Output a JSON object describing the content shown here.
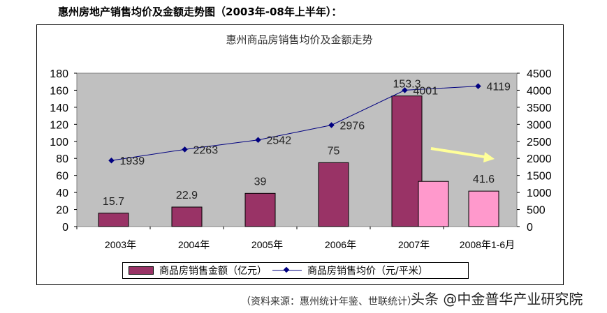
{
  "heading": "惠州房地产销售均价及金额走势图（2003年-08年上半年）：",
  "source": "（资料来源：惠州统计年鉴、世联统计）",
  "watermark": "头条 @中金普华产业研究院",
  "chart_data": {
    "type": "bar+line",
    "title": "惠州商品房销售均价及金额走势",
    "categories": [
      "2003年",
      "2004年",
      "2005年",
      "2006年",
      "2007年",
      "2008年1-6月"
    ],
    "ylim": [
      0,
      180
    ],
    "yticks": [
      0,
      20,
      40,
      60,
      80,
      100,
      120,
      140,
      160,
      180
    ],
    "y2lim": [
      0,
      4500
    ],
    "y2ticks": [
      0,
      500,
      1000,
      1500,
      2000,
      2500,
      3000,
      3500,
      4000,
      4500
    ],
    "grid": false,
    "legend_position": "bottom",
    "series": [
      {
        "name": "商品房销售金额（亿元）",
        "type": "bar",
        "axis": "left",
        "color": "#993366",
        "values": [
          15.7,
          22.9,
          39,
          75,
          153.3,
          null
        ],
        "labels": [
          "15.7",
          "22.9",
          "39",
          "75",
          "153.3",
          ""
        ]
      },
      {
        "type": "bar",
        "axis": "left",
        "color": "#FF99CC",
        "values": [
          null,
          null,
          null,
          null,
          53,
          41.6
        ],
        "labels": [
          "",
          "",
          "",
          "",
          "",
          "41.6"
        ]
      },
      {
        "name": "商品房销售均价（元/平米）",
        "type": "line",
        "axis": "right",
        "color": "#000080",
        "values": [
          1939,
          2263,
          2542,
          2976,
          4001,
          4119
        ]
      }
    ],
    "annotations": [
      {
        "type": "arrow",
        "color": "#FFFF99",
        "direction": "down-right"
      }
    ],
    "plot_bg": "#C0C0C0"
  }
}
